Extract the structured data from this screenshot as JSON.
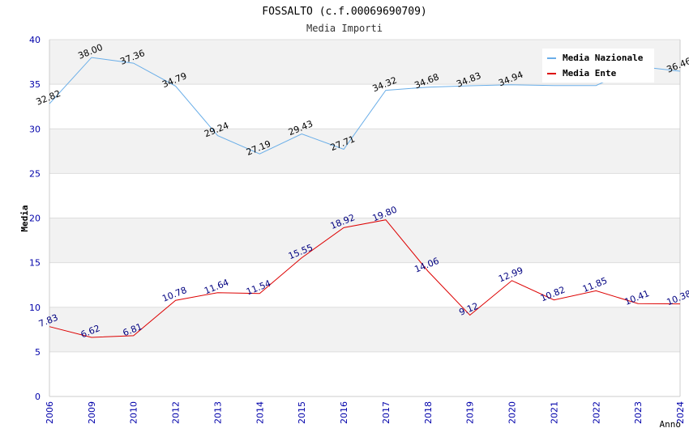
{
  "chart_data": {
    "type": "line",
    "title": "FOSSALTO (c.f.00069690709)",
    "subtitle": "Media Importi",
    "xlabel": "Anno",
    "ylabel": "Media",
    "ylim": [
      0,
      40
    ],
    "yticks": [
      0,
      5,
      10,
      15,
      20,
      25,
      30,
      35,
      40
    ],
    "categories": [
      "2006",
      "2009",
      "2010",
      "2012",
      "2013",
      "2014",
      "2015",
      "2016",
      "2017",
      "2018",
      "2019",
      "2020",
      "2021",
      "2022",
      "2023",
      "2024"
    ],
    "grid": true,
    "legend_position": "top-right",
    "series": [
      {
        "name": "Media Nazionale",
        "color": "#6aaee8",
        "label_color": "#000000",
        "values": [
          32.82,
          38.0,
          37.36,
          34.79,
          29.24,
          27.19,
          29.43,
          27.71,
          34.32,
          34.68,
          34.83,
          34.94,
          34.86,
          34.86,
          37.0,
          36.46
        ],
        "labels": [
          "32.82",
          "38.00",
          "37.36",
          "34.79",
          "29.24",
          "27.19",
          "29.43",
          "27.71",
          "34.32",
          "34.68",
          "34.83",
          "34.94",
          "",
          "",
          "",
          "36.46"
        ]
      },
      {
        "name": "Media Ente",
        "color": "#dd0000",
        "label_color": "#000080",
        "values": [
          7.83,
          6.62,
          6.81,
          10.78,
          11.64,
          11.54,
          15.55,
          18.92,
          19.8,
          14.06,
          9.12,
          12.99,
          10.82,
          11.85,
          10.41,
          10.38
        ],
        "labels": [
          "7.83",
          "6.62",
          "6.81",
          "10.78",
          "11.64",
          "11.54",
          "15.55",
          "18.92",
          "19.80",
          "14.06",
          "9.12",
          "12.99",
          "10.82",
          "11.85",
          "10.41",
          "10.38"
        ]
      }
    ]
  }
}
